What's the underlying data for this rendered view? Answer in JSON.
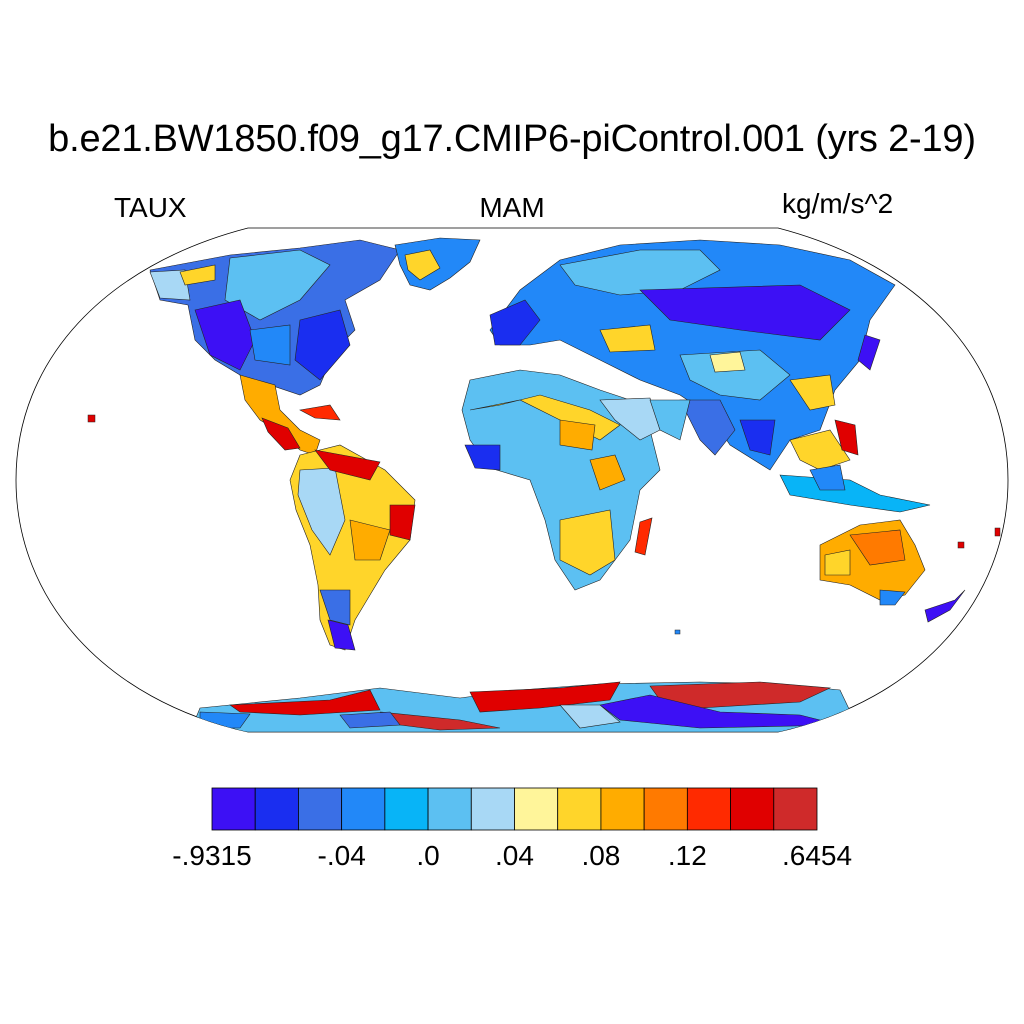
{
  "title": "b.e21.BW1850.f09_g17.CMIP6-piControl.001 (yrs 2-19)",
  "left_label": "TAUX",
  "center_label": "MAM",
  "right_label": "kg/m/s^2",
  "colorbar": {
    "colors": [
      "#3d10f5",
      "#1a2ef0",
      "#3a6fe6",
      "#2288f8",
      "#08b4f7",
      "#5cc0f2",
      "#a8d8f5",
      "#fff59a",
      "#ffd52a",
      "#ffac00",
      "#ff7a00",
      "#ff2a00",
      "#e00000",
      "#cf2a2a"
    ],
    "labels": [
      {
        "text": "-.9315",
        "boundary": 0
      },
      {
        "text": "-.04",
        "boundary": 3
      },
      {
        "text": ".0",
        "boundary": 5
      },
      {
        "text": ".04",
        "boundary": 7
      },
      {
        "text": ".08",
        "boundary": 9
      },
      {
        "text": ".12",
        "boundary": 11
      },
      {
        "text": ".6454",
        "boundary": 14
      }
    ]
  }
}
